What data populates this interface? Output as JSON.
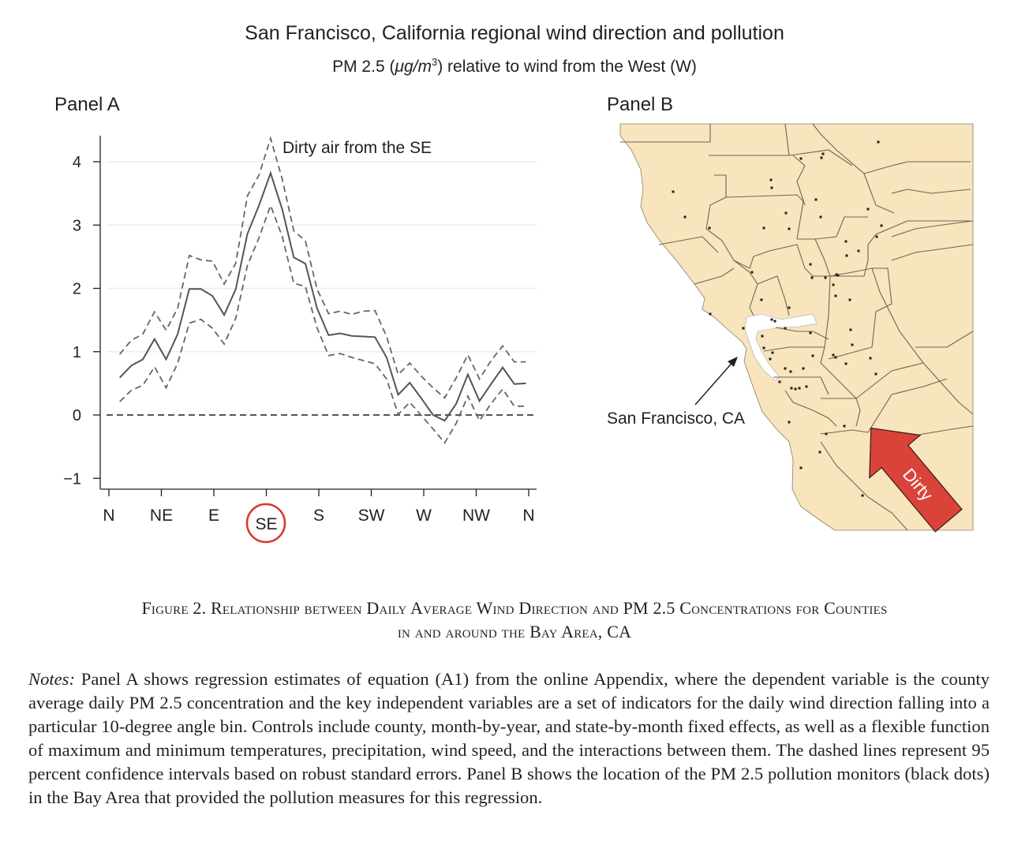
{
  "figure": {
    "title": "San Francisco, California regional wind direction and pollution",
    "subtitle_prefix": "PM 2.5 (",
    "subtitle_unit": "μg/m",
    "subtitle_sup": "3",
    "subtitle_suffix": ") relative to wind from the West (W)"
  },
  "panel_a": {
    "label": "Panel A",
    "annotation": "Dirty air from the SE",
    "highlight_tick": "SE",
    "highlight_color": "#d9342b"
  },
  "panel_b": {
    "label": "Panel B",
    "city_label": "San Francisco, CA",
    "arrow_label": "Dirty",
    "land_color": "#f8e4bd",
    "arrow_color": "#d9433a"
  },
  "chart_data": {
    "type": "line",
    "title": "PM 2.5 (μg/m3) relative to wind from the West (W)",
    "xlabel": "",
    "ylabel": "",
    "x_tick_labels": [
      "N",
      "NE",
      "E",
      "SE",
      "S",
      "SW",
      "W",
      "NW",
      "N"
    ],
    "y_ticks": [
      -1,
      0,
      1,
      2,
      3,
      4
    ],
    "y_tick_labels": [
      "−1",
      "0",
      "1",
      "2",
      "3",
      "4"
    ],
    "ylim": [
      -1.2,
      4.4
    ],
    "x": [
      10,
      20,
      30,
      40,
      50,
      60,
      70,
      80,
      90,
      100,
      110,
      120,
      130,
      140,
      150,
      160,
      170,
      180,
      190,
      200,
      210,
      220,
      230,
      240,
      250,
      260,
      270,
      280,
      290,
      300,
      310,
      320,
      330,
      340,
      350,
      360
    ],
    "series": [
      {
        "name": "Estimate",
        "style": "solid",
        "values": [
          0.59,
          0.78,
          0.88,
          1.2,
          0.88,
          1.28,
          1.99,
          1.99,
          1.88,
          1.58,
          1.99,
          2.86,
          3.31,
          3.82,
          3.25,
          2.49,
          2.39,
          1.69,
          1.26,
          1.29,
          1.25,
          1.24,
          1.23,
          0.91,
          0.32,
          0.51,
          0.26,
          0.0,
          -0.09,
          0.18,
          0.64,
          0.22,
          0.49,
          0.75,
          0.49,
          0.5
        ]
      },
      {
        "name": "Upper 95% CI",
        "style": "dashed",
        "values": [
          0.96,
          1.18,
          1.28,
          1.63,
          1.34,
          1.69,
          2.52,
          2.45,
          2.43,
          2.07,
          2.4,
          3.46,
          3.79,
          4.37,
          3.73,
          2.91,
          2.75,
          1.99,
          1.6,
          1.64,
          1.59,
          1.64,
          1.65,
          1.24,
          0.64,
          0.82,
          0.61,
          0.43,
          0.27,
          0.59,
          0.95,
          0.57,
          0.86,
          1.09,
          0.84,
          0.84
        ]
      },
      {
        "name": "Lower 95% CI",
        "style": "dashed",
        "values": [
          0.21,
          0.39,
          0.47,
          0.76,
          0.43,
          0.82,
          1.45,
          1.51,
          1.37,
          1.12,
          1.53,
          2.36,
          2.8,
          3.31,
          2.82,
          2.08,
          2.03,
          1.38,
          0.94,
          0.97,
          0.91,
          0.86,
          0.81,
          0.57,
          0.01,
          0.2,
          -0.01,
          -0.22,
          -0.44,
          -0.13,
          0.3,
          -0.09,
          0.18,
          0.41,
          0.14,
          0.14
        ]
      }
    ],
    "reference_line": {
      "y": 0,
      "style": "dashed"
    },
    "grid": true,
    "annotation": "Dirty air from the SE"
  },
  "caption": {
    "line1": "Figure 2. Relationship between Daily Average Wind Direction and PM 2.5 Concentrations for Counties",
    "line2": "in and around the Bay Area, CA"
  },
  "notes": {
    "label": "Notes:",
    "text": " Panel A shows regression estimates of equation (A1) from the online Appendix, where the dependent variable is the county average daily PM 2.5 concentration and the key independent variables are a set of indicators for the daily wind direction falling into a particular 10-degree angle bin. Controls include county, month-by-year, and state-by-month fixed effects, as well as a flexible function of maximum and minimum temperatures, precipitation, wind speed, and the interactions between them. The dashed lines represent 95 percent confidence intervals based on robust standard errors. Panel B shows the location of the PM 2.5 pollution monitors (black dots) in the Bay Area that provided the pollution measures for this regression."
  }
}
